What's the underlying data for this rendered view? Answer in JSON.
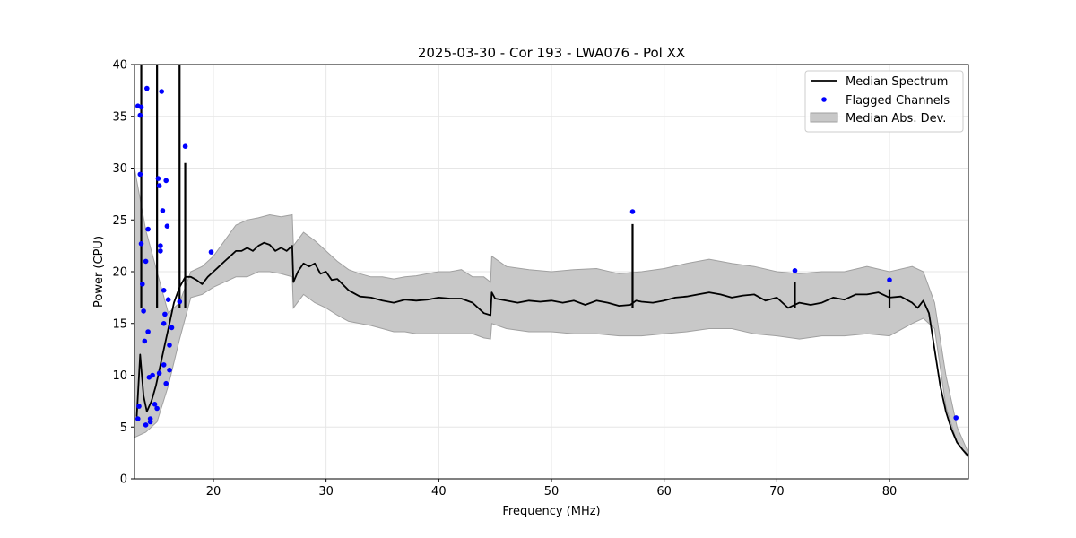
{
  "chart_data": {
    "type": "line",
    "title": "2025-03-30 - Cor 193 - LWA076 - Pol XX",
    "xlabel": "Frequency (MHz)",
    "ylabel": "Power (CPU)",
    "xlim": [
      13.0,
      87.0
    ],
    "ylim": [
      0,
      40
    ],
    "grid": true,
    "legend_position": "top-right",
    "x_ticks": [
      20,
      30,
      40,
      50,
      60,
      70,
      80
    ],
    "y_ticks": [
      0,
      5,
      10,
      15,
      20,
      25,
      30,
      35,
      40
    ],
    "legend": [
      {
        "label": "Median Spectrum",
        "kind": "line"
      },
      {
        "label": "Flagged Channels",
        "kind": "point"
      },
      {
        "label": "Median Abs. Dev.",
        "kind": "band"
      }
    ],
    "colors": {
      "line": "#000000",
      "flag": "#0000ff",
      "band": "#c8c8c8",
      "band_edge": "#a0a0a0",
      "grid": "#e6e6e6"
    },
    "series": [
      {
        "name": "Median Spectrum",
        "x": [
          13.2,
          13.5,
          13.8,
          14.1,
          14.5,
          14.9,
          15.3,
          15.7,
          16.1,
          16.5,
          17.0,
          17.5,
          18.0,
          18.5,
          19.0,
          19.5,
          20.0,
          20.5,
          21.0,
          21.5,
          22.0,
          22.5,
          23.0,
          23.5,
          24.0,
          24.5,
          25.0,
          25.5,
          26.0,
          26.5,
          27.0,
          27.1,
          27.5,
          28.0,
          28.5,
          29.0,
          29.5,
          30.0,
          30.5,
          31.0,
          32.0,
          33.0,
          34.0,
          35.0,
          36.0,
          37.0,
          38.0,
          39.0,
          40.0,
          41.0,
          42.0,
          43.0,
          44.0,
          44.6,
          44.7,
          45.0,
          46.0,
          47.0,
          48.0,
          49.0,
          50.0,
          51.0,
          52.0,
          53.0,
          54.0,
          55.0,
          56.0,
          57.0,
          57.5,
          58.0,
          59.0,
          60.0,
          61.0,
          62.0,
          63.0,
          64.0,
          65.0,
          66.0,
          67.0,
          68.0,
          69.0,
          70.0,
          71.0,
          72.0,
          73.0,
          74.0,
          75.0,
          76.0,
          77.0,
          78.0,
          79.0,
          80.0,
          81.0,
          82.0,
          82.5,
          83.0,
          83.5,
          84.0,
          84.5,
          85.0,
          85.5,
          86.0,
          86.5,
          87.0
        ],
        "y": [
          6.0,
          12.0,
          8.0,
          6.5,
          7.5,
          9.0,
          11.0,
          13.0,
          15.0,
          17.0,
          18.5,
          19.5,
          19.5,
          19.2,
          18.8,
          19.5,
          20.0,
          20.5,
          21.0,
          21.5,
          22.0,
          22.0,
          22.3,
          22.0,
          22.5,
          22.8,
          22.6,
          22.0,
          22.3,
          22.0,
          22.5,
          19.0,
          20.0,
          20.8,
          20.5,
          20.8,
          19.8,
          20.0,
          19.2,
          19.3,
          18.2,
          17.6,
          17.5,
          17.2,
          17.0,
          17.3,
          17.2,
          17.3,
          17.5,
          17.4,
          17.4,
          17.0,
          16.0,
          15.8,
          18.0,
          17.4,
          17.2,
          17.0,
          17.2,
          17.1,
          17.2,
          17.0,
          17.2,
          16.8,
          17.2,
          17.0,
          16.7,
          16.8,
          17.2,
          17.1,
          17.0,
          17.2,
          17.5,
          17.6,
          17.8,
          18.0,
          17.8,
          17.5,
          17.7,
          17.8,
          17.2,
          17.5,
          16.5,
          17.0,
          16.8,
          17.0,
          17.5,
          17.3,
          17.8,
          17.8,
          18.0,
          17.5,
          17.6,
          17.0,
          16.5,
          17.2,
          16.0,
          12.5,
          9.0,
          6.5,
          4.8,
          3.5,
          2.8,
          2.2
        ],
        "spikes": [
          [
            13.6,
            40.0
          ],
          [
            15.0,
            40.0
          ],
          [
            17.0,
            40.0
          ],
          [
            17.5,
            30.5
          ],
          [
            57.2,
            24.6
          ],
          [
            71.6,
            19.0
          ],
          [
            80.0,
            18.3
          ]
        ]
      },
      {
        "name": "Median Abs. Dev.",
        "x": [
          13.0,
          14.0,
          15.0,
          16.0,
          17.0,
          18.0,
          19.0,
          20.0,
          21.0,
          22.0,
          23.0,
          24.0,
          25.0,
          26.0,
          27.0,
          27.1,
          28.0,
          29.0,
          30.0,
          31.0,
          32.0,
          33.0,
          34.0,
          35.0,
          36.0,
          37.0,
          38.0,
          39.0,
          40.0,
          41.0,
          42.0,
          43.0,
          44.0,
          44.6,
          44.7,
          46.0,
          48.0,
          50.0,
          52.0,
          54.0,
          56.0,
          58.0,
          60.0,
          62.0,
          64.0,
          66.0,
          68.0,
          70.0,
          72.0,
          74.0,
          76.0,
          78.0,
          80.0,
          82.0,
          83.0,
          84.0,
          85.0,
          86.0,
          87.0
        ],
        "upper": [
          30.0,
          24.0,
          20.0,
          16.0,
          17.0,
          20.0,
          20.5,
          21.5,
          23.0,
          24.5,
          25.0,
          25.2,
          25.5,
          25.3,
          25.5,
          22.5,
          23.8,
          23.0,
          22.0,
          21.0,
          20.2,
          19.8,
          19.5,
          19.5,
          19.3,
          19.5,
          19.6,
          19.8,
          20.0,
          20.0,
          20.2,
          19.5,
          19.5,
          19.0,
          21.5,
          20.5,
          20.2,
          20.0,
          20.2,
          20.3,
          19.8,
          20.0,
          20.3,
          20.8,
          21.2,
          20.8,
          20.5,
          20.0,
          19.8,
          20.0,
          20.0,
          20.5,
          20.0,
          20.5,
          20.0,
          17.0,
          10.0,
          5.0,
          2.5
        ],
        "lower": [
          4.0,
          4.5,
          5.5,
          9.0,
          13.5,
          17.5,
          17.8,
          18.5,
          19.0,
          19.5,
          19.5,
          20.0,
          20.0,
          19.8,
          19.5,
          16.5,
          17.8,
          17.0,
          16.5,
          15.8,
          15.2,
          15.0,
          14.8,
          14.5,
          14.2,
          14.2,
          14.0,
          14.0,
          14.0,
          14.0,
          14.0,
          14.0,
          13.6,
          13.5,
          15.0,
          14.5,
          14.2,
          14.2,
          14.0,
          14.0,
          13.8,
          13.8,
          14.0,
          14.2,
          14.5,
          14.5,
          14.0,
          13.8,
          13.5,
          13.8,
          13.8,
          14.0,
          13.8,
          15.0,
          15.5,
          14.5,
          7.0,
          3.5,
          2.0
        ]
      },
      {
        "name": "Flagged Channels",
        "points": [
          [
            13.3,
            5.8
          ],
          [
            13.4,
            7.0
          ],
          [
            13.5,
            29.4
          ],
          [
            13.6,
            35.9
          ],
          [
            13.6,
            22.7
          ],
          [
            13.7,
            18.8
          ],
          [
            13.8,
            16.2
          ],
          [
            13.9,
            13.3
          ],
          [
            14.0,
            21.0
          ],
          [
            14.1,
            37.7
          ],
          [
            14.2,
            14.2
          ],
          [
            14.3,
            9.8
          ],
          [
            14.4,
            5.5
          ],
          [
            14.6,
            10.0
          ],
          [
            14.8,
            7.2
          ],
          [
            15.0,
            6.8
          ],
          [
            15.1,
            29.0
          ],
          [
            15.2,
            28.3
          ],
          [
            15.3,
            22.5
          ],
          [
            15.4,
            37.4
          ],
          [
            15.5,
            25.9
          ],
          [
            15.6,
            18.2
          ],
          [
            15.7,
            15.9
          ],
          [
            15.8,
            28.8
          ],
          [
            15.9,
            24.4
          ],
          [
            16.0,
            17.3
          ],
          [
            16.1,
            12.9
          ],
          [
            16.3,
            14.6
          ],
          [
            17.0,
            17.1
          ],
          [
            17.5,
            32.1
          ],
          [
            19.8,
            21.9
          ],
          [
            57.2,
            25.8
          ],
          [
            71.6,
            20.1
          ],
          [
            80.0,
            19.2
          ],
          [
            85.9,
            5.9
          ],
          [
            13.3,
            36.0
          ],
          [
            13.5,
            35.1
          ],
          [
            15.6,
            11.0
          ],
          [
            15.2,
            10.2
          ],
          [
            14.2,
            24.1
          ],
          [
            15.6,
            15.0
          ],
          [
            14.0,
            5.2
          ],
          [
            14.4,
            5.8
          ],
          [
            15.3,
            22.0
          ],
          [
            16.1,
            10.5
          ],
          [
            15.8,
            9.2
          ]
        ]
      }
    ]
  }
}
